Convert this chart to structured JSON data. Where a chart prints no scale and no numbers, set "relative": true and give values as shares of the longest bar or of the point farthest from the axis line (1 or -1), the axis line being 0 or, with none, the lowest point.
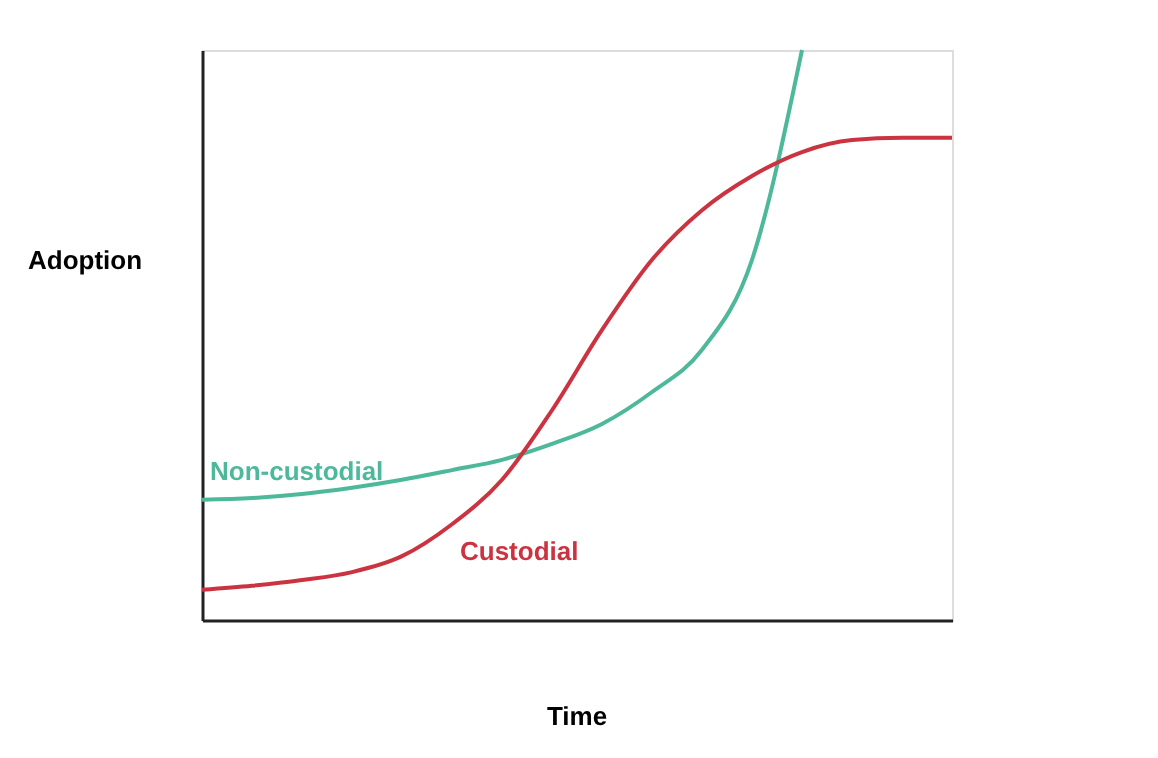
{
  "chart_data": {
    "type": "line",
    "relative": true,
    "xlabel": "Time",
    "ylabel": "Adoption",
    "tick_labels": false,
    "grid": false,
    "marker": "none",
    "line_style": "solid",
    "categories": [
      null,
      null,
      null,
      null,
      null,
      null,
      null,
      null,
      null,
      null,
      null,
      null,
      null,
      null,
      null,
      null
    ],
    "series": [
      {
        "name": "Non-custodial",
        "color": "#4db89a",
        "values": [
          0.211,
          0.214,
          0.221,
          0.232,
          0.246,
          0.263,
          0.281,
          0.309,
          0.344,
          0.4,
          0.474,
          0.632,
          1,
          null,
          null,
          null
        ]
      },
      {
        "name": "Custodial",
        "color": "#cc3340",
        "values": [
          0.053,
          0.06,
          0.07,
          0.084,
          0.112,
          0.168,
          0.246,
          0.368,
          0.509,
          0.632,
          0.719,
          0.779,
          0.821,
          0.842,
          0.846,
          0.846
        ]
      }
    ]
  }
}
